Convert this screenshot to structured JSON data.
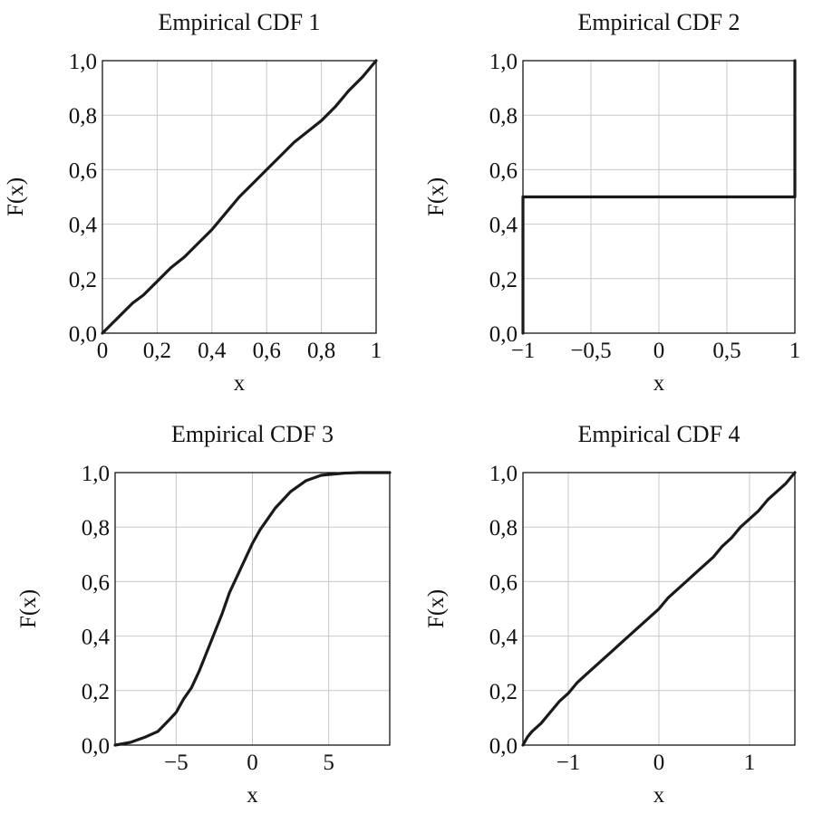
{
  "chart_data": [
    {
      "type": "line",
      "title": "Empirical CDF 1",
      "xlabel": "x",
      "ylabel": "F(x)",
      "xlim": [
        0,
        1
      ],
      "ylim": [
        0,
        1
      ],
      "grid": true,
      "xticks": [
        0,
        0.2,
        0.4,
        0.6,
        0.8,
        1
      ],
      "xtick_labels": [
        "0",
        "0,2",
        "0,4",
        "0,6",
        "0,8",
        "1"
      ],
      "yticks": [
        0,
        0.2,
        0.4,
        0.6,
        0.8,
        1
      ],
      "ytick_labels": [
        "0,0",
        "0,2",
        "0,4",
        "0,6",
        "0,8",
        "1,0"
      ],
      "series": [
        {
          "x": [
            0,
            0.02,
            0.05,
            0.08,
            0.11,
            0.15,
            0.2,
            0.25,
            0.3,
            0.35,
            0.4,
            0.45,
            0.5,
            0.55,
            0.6,
            0.65,
            0.7,
            0.75,
            0.8,
            0.85,
            0.9,
            0.95,
            1.0
          ],
          "y": [
            0,
            0.02,
            0.05,
            0.08,
            0.11,
            0.14,
            0.19,
            0.24,
            0.28,
            0.33,
            0.38,
            0.44,
            0.5,
            0.55,
            0.6,
            0.65,
            0.7,
            0.74,
            0.78,
            0.83,
            0.89,
            0.94,
            1.0
          ]
        }
      ]
    },
    {
      "type": "line",
      "title": "Empirical CDF 2",
      "xlabel": "x",
      "ylabel": "F(x)",
      "xlim": [
        -1,
        1
      ],
      "ylim": [
        0,
        1
      ],
      "grid": true,
      "xticks": [
        -1,
        -0.5,
        0,
        0.5,
        1
      ],
      "xtick_labels": [
        "−1",
        "−0,5",
        "0",
        "0,5",
        "1"
      ],
      "yticks": [
        0,
        0.2,
        0.4,
        0.6,
        0.8,
        1
      ],
      "ytick_labels": [
        "0,0",
        "0,2",
        "0,4",
        "0,6",
        "0,8",
        "1,0"
      ],
      "series": [
        {
          "x": [
            -1,
            -1,
            1,
            1
          ],
          "y": [
            0,
            0.5,
            0.5,
            1.0
          ]
        }
      ]
    },
    {
      "type": "line",
      "title": "Empirical CDF 3",
      "xlabel": "x",
      "ylabel": "F(x)",
      "xlim": [
        -9,
        9
      ],
      "ylim": [
        0,
        1
      ],
      "grid": true,
      "xticks": [
        -5,
        0,
        5
      ],
      "xtick_labels": [
        "−5",
        "0",
        "5"
      ],
      "yticks": [
        0,
        0.2,
        0.4,
        0.6,
        0.8,
        1
      ],
      "ytick_labels": [
        "0,0",
        "0,2",
        "0,4",
        "0,6",
        "0,8",
        "1,0"
      ],
      "series": [
        {
          "x": [
            -9,
            -8,
            -7,
            -6.2,
            -5.5,
            -5,
            -4.5,
            -4,
            -3.5,
            -3,
            -2.5,
            -2,
            -1.5,
            -1,
            -0.5,
            0,
            0.5,
            1,
            1.5,
            2,
            2.5,
            3,
            3.5,
            4,
            4.5,
            5,
            6,
            7,
            8,
            9
          ],
          "y": [
            0,
            0.01,
            0.03,
            0.05,
            0.09,
            0.12,
            0.17,
            0.21,
            0.27,
            0.34,
            0.41,
            0.48,
            0.56,
            0.62,
            0.68,
            0.74,
            0.79,
            0.83,
            0.87,
            0.9,
            0.93,
            0.95,
            0.97,
            0.98,
            0.99,
            0.993,
            0.998,
            1.0,
            1.0,
            1.0
          ]
        }
      ]
    },
    {
      "type": "line",
      "title": "Empirical CDF 4",
      "xlabel": "x",
      "ylabel": "F(x)",
      "xlim": [
        -1.5,
        1.5
      ],
      "ylim": [
        0,
        1
      ],
      "grid": true,
      "xticks": [
        -1,
        0,
        1
      ],
      "xtick_labels": [
        "−1",
        "0",
        "1"
      ],
      "yticks": [
        0,
        0.2,
        0.4,
        0.6,
        0.8,
        1
      ],
      "ytick_labels": [
        "0,0",
        "0,2",
        "0,4",
        "0,6",
        "0,8",
        "1,0"
      ],
      "series": [
        {
          "x": [
            -1.5,
            -1.45,
            -1.4,
            -1.3,
            -1.2,
            -1.1,
            -1.0,
            -0.9,
            -0.8,
            -0.7,
            -0.6,
            -0.5,
            -0.4,
            -0.3,
            -0.2,
            -0.1,
            0,
            0.1,
            0.2,
            0.3,
            0.4,
            0.5,
            0.6,
            0.7,
            0.8,
            0.9,
            1.0,
            1.1,
            1.2,
            1.3,
            1.4,
            1.5
          ],
          "y": [
            0,
            0.03,
            0.05,
            0.08,
            0.12,
            0.16,
            0.19,
            0.23,
            0.26,
            0.29,
            0.32,
            0.35,
            0.38,
            0.41,
            0.44,
            0.47,
            0.5,
            0.54,
            0.57,
            0.6,
            0.63,
            0.66,
            0.69,
            0.73,
            0.76,
            0.8,
            0.83,
            0.86,
            0.9,
            0.93,
            0.96,
            1.0
          ]
        }
      ]
    }
  ]
}
